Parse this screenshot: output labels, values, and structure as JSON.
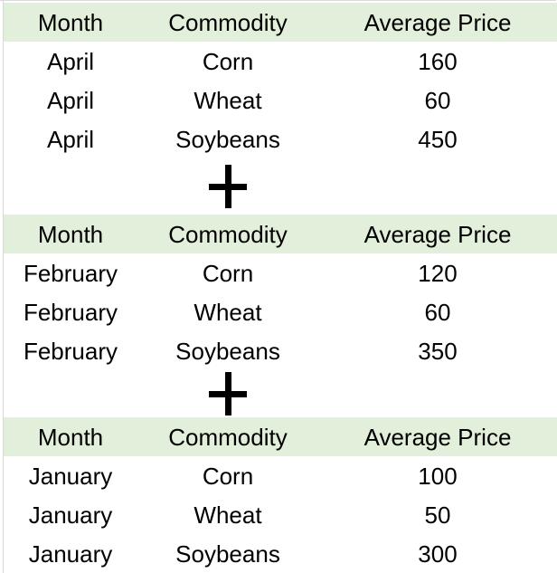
{
  "figure": {
    "description_symbol": "+",
    "header_bg_color": "#e2efda",
    "gridline_color": "#d9d9d9",
    "text_color": "#000000"
  },
  "tables": [
    {
      "headers": [
        "Month",
        "Commodity",
        "Average Price"
      ],
      "rows": [
        [
          "April",
          "Corn",
          "160"
        ],
        [
          "April",
          "Wheat",
          "60"
        ],
        [
          "April",
          "Soybeans",
          "450"
        ]
      ]
    },
    {
      "headers": [
        "Month",
        "Commodity",
        "Average Price"
      ],
      "rows": [
        [
          "February",
          "Corn",
          "120"
        ],
        [
          "February",
          "Wheat",
          "60"
        ],
        [
          "February",
          "Soybeans",
          "350"
        ]
      ]
    },
    {
      "headers": [
        "Month",
        "Commodity",
        "Average Price"
      ],
      "rows": [
        [
          "January",
          "Corn",
          "100"
        ],
        [
          "January",
          "Wheat",
          "50"
        ],
        [
          "January",
          "Soybeans",
          "300"
        ]
      ]
    }
  ],
  "chart_data": [
    {
      "type": "table",
      "title": "",
      "columns": [
        "Month",
        "Commodity",
        "Average Price"
      ],
      "rows": [
        [
          "April",
          "Corn",
          160
        ],
        [
          "April",
          "Wheat",
          60
        ],
        [
          "April",
          "Soybeans",
          450
        ]
      ]
    },
    {
      "type": "table",
      "title": "",
      "columns": [
        "Month",
        "Commodity",
        "Average Price"
      ],
      "rows": [
        [
          "February",
          "Corn",
          120
        ],
        [
          "February",
          "Wheat",
          60
        ],
        [
          "February",
          "Soybeans",
          350
        ]
      ]
    },
    {
      "type": "table",
      "title": "",
      "columns": [
        "Month",
        "Commodity",
        "Average Price"
      ],
      "rows": [
        [
          "January",
          "Corn",
          100
        ],
        [
          "January",
          "Wheat",
          50
        ],
        [
          "January",
          "Soybeans",
          300
        ]
      ]
    }
  ]
}
